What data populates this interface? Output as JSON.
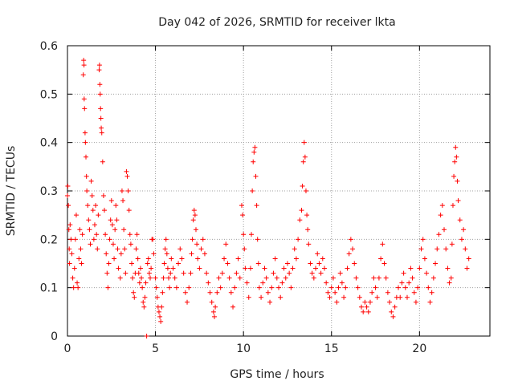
{
  "chart_data": {
    "type": "scatter",
    "title": "Day 042 of 2026, SRMTID for receiver lkta",
    "xlabel": "GPS time / hours",
    "ylabel": "SRMTID / TECUs",
    "xlim": [
      0,
      24
    ],
    "ylim": [
      0,
      0.6
    ],
    "x_ticks": [
      0,
      5,
      10,
      15,
      20
    ],
    "x_tick_labels": [
      "0",
      "5",
      "10",
      "15",
      "20"
    ],
    "y_ticks": [
      0,
      0.1,
      0.2,
      0.3,
      0.4,
      0.5,
      0.6
    ],
    "y_tick_labels": [
      "0",
      "0.1",
      "0.2",
      "0.3",
      "0.4",
      "0.5",
      "0.6"
    ],
    "grid": true,
    "marker": "+",
    "series_color": "#ff0000",
    "series": [
      {
        "name": "SRMTID",
        "points": [
          [
            0.0,
            0.29
          ],
          [
            0.02,
            0.31
          ],
          [
            0.05,
            0.27
          ],
          [
            0.08,
            0.22
          ],
          [
            0.1,
            0.18
          ],
          [
            0.12,
            0.15
          ],
          [
            0.15,
            0.23
          ],
          [
            0.2,
            0.2
          ],
          [
            0.25,
            0.17
          ],
          [
            0.3,
            0.12
          ],
          [
            0.35,
            0.1
          ],
          [
            0.4,
            0.14
          ],
          [
            0.45,
            0.2
          ],
          [
            0.5,
            0.25
          ],
          [
            0.55,
            0.11
          ],
          [
            0.6,
            0.1
          ],
          [
            0.65,
            0.16
          ],
          [
            0.7,
            0.22
          ],
          [
            0.75,
            0.18
          ],
          [
            0.8,
            0.15
          ],
          [
            0.85,
            0.21
          ],
          [
            0.9,
            0.54
          ],
          [
            0.92,
            0.57
          ],
          [
            0.94,
            0.56
          ],
          [
            0.95,
            0.49
          ],
          [
            0.97,
            0.47
          ],
          [
            1.0,
            0.42
          ],
          [
            1.02,
            0.4
          ],
          [
            1.05,
            0.37
          ],
          [
            1.08,
            0.33
          ],
          [
            1.1,
            0.3
          ],
          [
            1.15,
            0.27
          ],
          [
            1.2,
            0.24
          ],
          [
            1.25,
            0.22
          ],
          [
            1.3,
            0.19
          ],
          [
            1.35,
            0.32
          ],
          [
            1.4,
            0.29
          ],
          [
            1.45,
            0.26
          ],
          [
            1.5,
            0.2
          ],
          [
            1.55,
            0.23
          ],
          [
            1.6,
            0.27
          ],
          [
            1.65,
            0.21
          ],
          [
            1.7,
            0.18
          ],
          [
            1.75,
            0.25
          ],
          [
            1.8,
            0.55
          ],
          [
            1.82,
            0.56
          ],
          [
            1.84,
            0.52
          ],
          [
            1.86,
            0.5
          ],
          [
            1.88,
            0.47
          ],
          [
            1.9,
            0.45
          ],
          [
            1.92,
            0.43
          ],
          [
            1.95,
            0.42
          ],
          [
            2.0,
            0.36
          ],
          [
            2.05,
            0.29
          ],
          [
            2.1,
            0.26
          ],
          [
            2.15,
            0.21
          ],
          [
            2.2,
            0.17
          ],
          [
            2.25,
            0.13
          ],
          [
            2.3,
            0.1
          ],
          [
            2.35,
            0.15
          ],
          [
            2.4,
            0.2
          ],
          [
            2.45,
            0.24
          ],
          [
            2.5,
            0.28
          ],
          [
            2.55,
            0.23
          ],
          [
            2.6,
            0.19
          ],
          [
            2.65,
            0.16
          ],
          [
            2.7,
            0.22
          ],
          [
            2.75,
            0.27
          ],
          [
            2.8,
            0.24
          ],
          [
            2.85,
            0.18
          ],
          [
            2.9,
            0.14
          ],
          [
            3.0,
            0.12
          ],
          [
            3.05,
            0.17
          ],
          [
            3.1,
            0.3
          ],
          [
            3.15,
            0.28
          ],
          [
            3.2,
            0.22
          ],
          [
            3.25,
            0.18
          ],
          [
            3.3,
            0.13
          ],
          [
            3.35,
            0.34
          ],
          [
            3.4,
            0.33
          ],
          [
            3.45,
            0.3
          ],
          [
            3.5,
            0.26
          ],
          [
            3.55,
            0.21
          ],
          [
            3.6,
            0.19
          ],
          [
            3.65,
            0.15
          ],
          [
            3.7,
            0.12
          ],
          [
            3.75,
            0.09
          ],
          [
            3.8,
            0.08
          ],
          [
            3.85,
            0.13
          ],
          [
            3.9,
            0.18
          ],
          [
            3.95,
            0.21
          ],
          [
            4.0,
            0.16
          ],
          [
            4.05,
            0.13
          ],
          [
            4.1,
            0.11
          ],
          [
            4.15,
            0.14
          ],
          [
            4.2,
            0.12
          ],
          [
            4.25,
            0.1
          ],
          [
            4.3,
            0.07
          ],
          [
            4.35,
            0.06
          ],
          [
            4.4,
            0.08
          ],
          [
            4.45,
            0.11
          ],
          [
            4.5,
            0.0
          ],
          [
            4.55,
            0.15
          ],
          [
            4.6,
            0.16
          ],
          [
            4.65,
            0.13
          ],
          [
            4.7,
            0.12
          ],
          [
            4.75,
            0.14
          ],
          [
            4.8,
            0.2
          ],
          [
            4.85,
            0.2
          ],
          [
            4.9,
            0.17
          ],
          [
            5.0,
            0.12
          ],
          [
            5.05,
            0.1
          ],
          [
            5.1,
            0.08
          ],
          [
            5.15,
            0.06
          ],
          [
            5.2,
            0.05
          ],
          [
            5.25,
            0.04
          ],
          [
            5.3,
            0.03
          ],
          [
            5.35,
            0.06
          ],
          [
            5.4,
            0.09
          ],
          [
            5.45,
            0.12
          ],
          [
            5.5,
            0.15
          ],
          [
            5.55,
            0.18
          ],
          [
            5.6,
            0.2
          ],
          [
            5.65,
            0.17
          ],
          [
            5.7,
            0.14
          ],
          [
            5.75,
            0.12
          ],
          [
            5.8,
            0.1
          ],
          [
            5.85,
            0.13
          ],
          [
            5.9,
            0.16
          ],
          [
            6.0,
            0.14
          ],
          [
            6.1,
            0.12
          ],
          [
            6.2,
            0.1
          ],
          [
            6.3,
            0.15
          ],
          [
            6.4,
            0.18
          ],
          [
            6.5,
            0.16
          ],
          [
            6.6,
            0.13
          ],
          [
            6.7,
            0.09
          ],
          [
            6.8,
            0.07
          ],
          [
            6.9,
            0.1
          ],
          [
            7.0,
            0.13
          ],
          [
            7.05,
            0.17
          ],
          [
            7.1,
            0.2
          ],
          [
            7.15,
            0.24
          ],
          [
            7.2,
            0.26
          ],
          [
            7.25,
            0.25
          ],
          [
            7.3,
            0.22
          ],
          [
            7.35,
            0.19
          ],
          [
            7.4,
            0.16
          ],
          [
            7.5,
            0.14
          ],
          [
            7.6,
            0.18
          ],
          [
            7.7,
            0.2
          ],
          [
            7.8,
            0.17
          ],
          [
            7.9,
            0.13
          ],
          [
            8.0,
            0.11
          ],
          [
            8.1,
            0.09
          ],
          [
            8.2,
            0.07
          ],
          [
            8.3,
            0.05
          ],
          [
            8.35,
            0.04
          ],
          [
            8.4,
            0.06
          ],
          [
            8.5,
            0.09
          ],
          [
            8.6,
            0.12
          ],
          [
            8.7,
            0.1
          ],
          [
            8.8,
            0.13
          ],
          [
            8.9,
            0.16
          ],
          [
            9.0,
            0.19
          ],
          [
            9.1,
            0.15
          ],
          [
            9.2,
            0.12
          ],
          [
            9.3,
            0.09
          ],
          [
            9.4,
            0.06
          ],
          [
            9.5,
            0.1
          ],
          [
            9.6,
            0.13
          ],
          [
            9.7,
            0.16
          ],
          [
            9.8,
            0.12
          ],
          [
            9.9,
            0.27
          ],
          [
            9.95,
            0.25
          ],
          [
            10.0,
            0.21
          ],
          [
            10.05,
            0.18
          ],
          [
            10.1,
            0.14
          ],
          [
            10.2,
            0.11
          ],
          [
            10.3,
            0.08
          ],
          [
            10.4,
            0.14
          ],
          [
            10.45,
            0.21
          ],
          [
            10.5,
            0.3
          ],
          [
            10.55,
            0.36
          ],
          [
            10.6,
            0.38
          ],
          [
            10.65,
            0.39
          ],
          [
            10.7,
            0.33
          ],
          [
            10.75,
            0.27
          ],
          [
            10.8,
            0.2
          ],
          [
            10.85,
            0.15
          ],
          [
            10.9,
            0.1
          ],
          [
            11.0,
            0.08
          ],
          [
            11.1,
            0.11
          ],
          [
            11.2,
            0.14
          ],
          [
            11.3,
            0.12
          ],
          [
            11.4,
            0.09
          ],
          [
            11.5,
            0.07
          ],
          [
            11.6,
            0.1
          ],
          [
            11.7,
            0.13
          ],
          [
            11.8,
            0.16
          ],
          [
            11.9,
            0.12
          ],
          [
            12.0,
            0.1
          ],
          [
            12.1,
            0.08
          ],
          [
            12.2,
            0.11
          ],
          [
            12.3,
            0.14
          ],
          [
            12.4,
            0.12
          ],
          [
            12.5,
            0.15
          ],
          [
            12.6,
            0.13
          ],
          [
            12.7,
            0.1
          ],
          [
            12.8,
            0.14
          ],
          [
            12.9,
            0.18
          ],
          [
            13.0,
            0.16
          ],
          [
            13.1,
            0.2
          ],
          [
            13.2,
            0.24
          ],
          [
            13.3,
            0.26
          ],
          [
            13.35,
            0.31
          ],
          [
            13.4,
            0.36
          ],
          [
            13.45,
            0.4
          ],
          [
            13.5,
            0.37
          ],
          [
            13.55,
            0.3
          ],
          [
            13.6,
            0.25
          ],
          [
            13.65,
            0.22
          ],
          [
            13.7,
            0.19
          ],
          [
            13.8,
            0.15
          ],
          [
            13.9,
            0.13
          ],
          [
            14.0,
            0.12
          ],
          [
            14.1,
            0.14
          ],
          [
            14.2,
            0.17
          ],
          [
            14.3,
            0.15
          ],
          [
            14.4,
            0.13
          ],
          [
            14.5,
            0.16
          ],
          [
            14.6,
            0.14
          ],
          [
            14.7,
            0.11
          ],
          [
            14.8,
            0.09
          ],
          [
            14.9,
            0.08
          ],
          [
            15.0,
            0.1
          ],
          [
            15.1,
            0.12
          ],
          [
            15.2,
            0.09
          ],
          [
            15.3,
            0.07
          ],
          [
            15.4,
            0.1
          ],
          [
            15.5,
            0.13
          ],
          [
            15.6,
            0.11
          ],
          [
            15.7,
            0.08
          ],
          [
            15.8,
            0.1
          ],
          [
            15.9,
            0.14
          ],
          [
            16.0,
            0.17
          ],
          [
            16.1,
            0.2
          ],
          [
            16.2,
            0.18
          ],
          [
            16.3,
            0.15
          ],
          [
            16.4,
            0.12
          ],
          [
            16.5,
            0.1
          ],
          [
            16.6,
            0.08
          ],
          [
            16.7,
            0.06
          ],
          [
            16.8,
            0.05
          ],
          [
            16.9,
            0.07
          ],
          [
            17.0,
            0.06
          ],
          [
            17.1,
            0.05
          ],
          [
            17.2,
            0.07
          ],
          [
            17.3,
            0.09
          ],
          [
            17.4,
            0.12
          ],
          [
            17.5,
            0.1
          ],
          [
            17.6,
            0.08
          ],
          [
            17.7,
            0.12
          ],
          [
            17.8,
            0.16
          ],
          [
            17.9,
            0.19
          ],
          [
            18.0,
            0.15
          ],
          [
            18.1,
            0.12
          ],
          [
            18.2,
            0.09
          ],
          [
            18.3,
            0.07
          ],
          [
            18.4,
            0.05
          ],
          [
            18.5,
            0.04
          ],
          [
            18.6,
            0.06
          ],
          [
            18.7,
            0.08
          ],
          [
            18.8,
            0.1
          ],
          [
            18.9,
            0.08
          ],
          [
            19.0,
            0.11
          ],
          [
            19.1,
            0.13
          ],
          [
            19.2,
            0.1
          ],
          [
            19.3,
            0.08
          ],
          [
            19.4,
            0.11
          ],
          [
            19.5,
            0.14
          ],
          [
            19.6,
            0.12
          ],
          [
            19.7,
            0.09
          ],
          [
            19.8,
            0.07
          ],
          [
            19.9,
            0.1
          ],
          [
            20.0,
            0.14
          ],
          [
            20.1,
            0.18
          ],
          [
            20.2,
            0.2
          ],
          [
            20.3,
            0.16
          ],
          [
            20.4,
            0.13
          ],
          [
            20.5,
            0.1
          ],
          [
            20.6,
            0.07
          ],
          [
            20.7,
            0.09
          ],
          [
            20.8,
            0.12
          ],
          [
            20.9,
            0.15
          ],
          [
            21.0,
            0.18
          ],
          [
            21.1,
            0.21
          ],
          [
            21.2,
            0.25
          ],
          [
            21.3,
            0.27
          ],
          [
            21.4,
            0.22
          ],
          [
            21.5,
            0.18
          ],
          [
            21.6,
            0.14
          ],
          [
            21.7,
            0.11
          ],
          [
            21.8,
            0.12
          ],
          [
            21.85,
            0.19
          ],
          [
            21.9,
            0.27
          ],
          [
            21.95,
            0.33
          ],
          [
            22.0,
            0.36
          ],
          [
            22.05,
            0.39
          ],
          [
            22.1,
            0.37
          ],
          [
            22.15,
            0.32
          ],
          [
            22.2,
            0.28
          ],
          [
            22.3,
            0.24
          ],
          [
            22.4,
            0.2
          ],
          [
            22.5,
            0.22
          ],
          [
            22.6,
            0.18
          ],
          [
            22.7,
            0.14
          ],
          [
            22.8,
            0.16
          ]
        ]
      }
    ]
  }
}
